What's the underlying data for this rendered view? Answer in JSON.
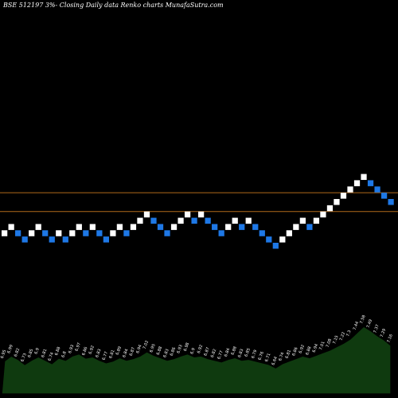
{
  "chart_data": {
    "type": "renko",
    "title": "BSE 512197 3%- Closing Daily data Renko charts MunafaSutra.com",
    "colors": {
      "background": "#000000",
      "up_brick": "#ffffff",
      "down_brick": "#1e78e6",
      "reference_line": "#b06a1a",
      "volume_fill": "#0f3a0f",
      "volume_line": "#000000",
      "text": "#ffffff"
    },
    "price_range": [
      -8,
      34
    ],
    "reference_levels": [
      7,
      4
    ],
    "bricks": [
      {
        "dir": "up",
        "level": 0
      },
      {
        "dir": "up",
        "level": 1
      },
      {
        "dir": "down",
        "level": 0
      },
      {
        "dir": "down",
        "level": -1
      },
      {
        "dir": "up",
        "level": 0
      },
      {
        "dir": "up",
        "level": 1
      },
      {
        "dir": "down",
        "level": 0
      },
      {
        "dir": "down",
        "level": -1
      },
      {
        "dir": "up",
        "level": 0
      },
      {
        "dir": "down",
        "level": -1
      },
      {
        "dir": "up",
        "level": 0
      },
      {
        "dir": "up",
        "level": 1
      },
      {
        "dir": "down",
        "level": 0
      },
      {
        "dir": "up",
        "level": 1
      },
      {
        "dir": "down",
        "level": 0
      },
      {
        "dir": "down",
        "level": -1
      },
      {
        "dir": "up",
        "level": 0
      },
      {
        "dir": "up",
        "level": 1
      },
      {
        "dir": "down",
        "level": 0
      },
      {
        "dir": "up",
        "level": 1
      },
      {
        "dir": "up",
        "level": 2
      },
      {
        "dir": "up",
        "level": 3
      },
      {
        "dir": "down",
        "level": 2
      },
      {
        "dir": "down",
        "level": 1
      },
      {
        "dir": "down",
        "level": 0
      },
      {
        "dir": "up",
        "level": 1
      },
      {
        "dir": "up",
        "level": 2
      },
      {
        "dir": "up",
        "level": 3
      },
      {
        "dir": "down",
        "level": 2
      },
      {
        "dir": "up",
        "level": 3
      },
      {
        "dir": "down",
        "level": 2
      },
      {
        "dir": "down",
        "level": 1
      },
      {
        "dir": "down",
        "level": 0
      },
      {
        "dir": "up",
        "level": 1
      },
      {
        "dir": "up",
        "level": 2
      },
      {
        "dir": "down",
        "level": 1
      },
      {
        "dir": "up",
        "level": 2
      },
      {
        "dir": "down",
        "level": 1
      },
      {
        "dir": "down",
        "level": 0
      },
      {
        "dir": "down",
        "level": -1
      },
      {
        "dir": "down",
        "level": -2
      },
      {
        "dir": "up",
        "level": -1
      },
      {
        "dir": "up",
        "level": 0
      },
      {
        "dir": "up",
        "level": 1
      },
      {
        "dir": "up",
        "level": 2
      },
      {
        "dir": "down",
        "level": 1
      },
      {
        "dir": "up",
        "level": 2
      },
      {
        "dir": "up",
        "level": 3
      },
      {
        "dir": "up",
        "level": 4
      },
      {
        "dir": "up",
        "level": 5
      },
      {
        "dir": "up",
        "level": 6
      },
      {
        "dir": "up",
        "level": 7
      },
      {
        "dir": "up",
        "level": 8
      },
      {
        "dir": "up",
        "level": 9
      },
      {
        "dir": "down",
        "level": 8
      },
      {
        "dir": "down",
        "level": 7
      },
      {
        "dir": "down",
        "level": 6
      },
      {
        "dir": "down",
        "level": 5
      }
    ],
    "volume": [
      0.78,
      0.9,
      0.82,
      0.7,
      0.8,
      0.88,
      0.8,
      0.72,
      0.85,
      0.8,
      0.9,
      0.95,
      0.85,
      0.88,
      0.8,
      0.74,
      0.78,
      0.86,
      0.8,
      0.84,
      0.9,
      1.0,
      0.92,
      0.86,
      0.8,
      0.84,
      0.9,
      0.95,
      0.88,
      0.9,
      0.84,
      0.8,
      0.76,
      0.82,
      0.86,
      0.8,
      0.82,
      0.78,
      0.74,
      0.7,
      0.62,
      0.72,
      0.78,
      0.84,
      0.9,
      0.86,
      0.92,
      0.98,
      1.04,
      1.12,
      1.2,
      1.3,
      1.45,
      1.6,
      1.5,
      1.38,
      1.28,
      1.15
    ],
    "volume_labels": [
      "6.95",
      "6.99",
      "6.82",
      "6.73",
      "6.85",
      "6.9",
      "6.81",
      "6.74",
      "6.88",
      "6.8",
      "6.93",
      "6.97",
      "6.86",
      "6.92",
      "6.83",
      "6.77",
      "6.81",
      "6.89",
      "6.84",
      "6.87",
      "6.94",
      "7.02",
      "6.95",
      "6.88",
      "6.83",
      "6.86",
      "6.93",
      "6.98",
      "6.9",
      "6.92",
      "6.87",
      "6.82",
      "6.77",
      "6.84",
      "6.88",
      "6.83",
      "6.85",
      "6.79",
      "6.76",
      "6.71",
      "6.64",
      "6.74",
      "6.81",
      "6.86",
      "6.92",
      "6.88",
      "6.94",
      "7.01",
      "7.08",
      "7.15",
      "7.22",
      "7.3",
      "7.44",
      "7.58",
      "7.49",
      "7.37",
      "7.29",
      "7.16"
    ]
  }
}
